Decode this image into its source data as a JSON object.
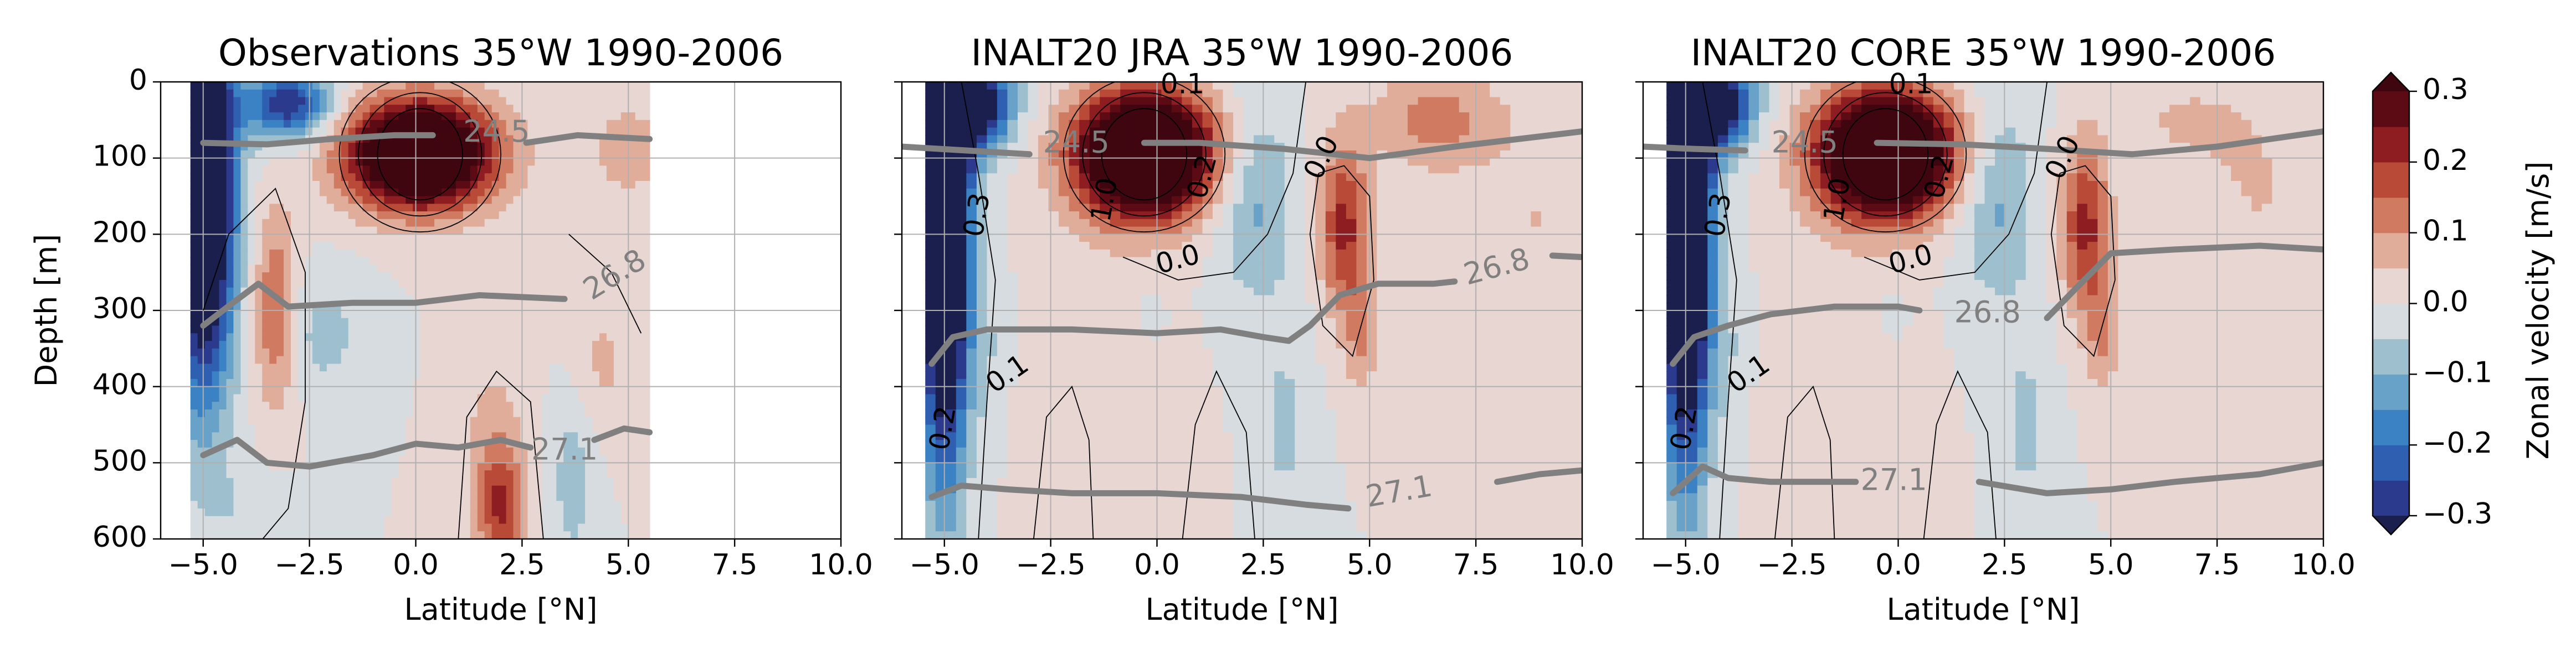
{
  "figure": {
    "background": "#ffffff"
  },
  "panels": [
    {
      "title": "Observations 35°W 1990-2006",
      "xlabel": "Latitude [°N]",
      "ylabel": "Depth [m]",
      "show_y_tick_labels": true,
      "data_xmax": 5.5,
      "density_labels": [
        {
          "text": "24.5",
          "lat": 1.9,
          "depth": 68,
          "rot": 0
        },
        {
          "text": "26.8",
          "lat": 4.7,
          "depth": 255,
          "rot": -32
        },
        {
          "text": "27.1",
          "lat": 3.5,
          "depth": 485,
          "rot": 0
        }
      ],
      "contour_labels": []
    },
    {
      "title": "INALT20 JRA 35°W 1990-2006",
      "xlabel": "Latitude [°N]",
      "ylabel": "",
      "show_y_tick_labels": false,
      "data_xmax": 10,
      "density_labels": [
        {
          "text": "24.5",
          "lat": -1.9,
          "depth": 82,
          "rot": 0
        },
        {
          "text": "26.8",
          "lat": 8.0,
          "depth": 245,
          "rot": -15
        },
        {
          "text": "27.1",
          "lat": 5.7,
          "depth": 540,
          "rot": -10
        }
      ],
      "contour_labels": [
        {
          "text": "0.1",
          "lat": 0.6,
          "depth": 5,
          "rot": 0
        },
        {
          "text": "0.3",
          "lat": -4.2,
          "depth": 175,
          "rot": -80
        },
        {
          "text": "1.0",
          "lat": -1.2,
          "depth": 155,
          "rot": -80
        },
        {
          "text": "0.2",
          "lat": 1.1,
          "depth": 125,
          "rot": -75
        },
        {
          "text": "0.0",
          "lat": 3.9,
          "depth": 100,
          "rot": -65
        },
        {
          "text": "0.0",
          "lat": 0.5,
          "depth": 235,
          "rot": -15
        },
        {
          "text": "0.1",
          "lat": -3.5,
          "depth": 385,
          "rot": -35
        },
        {
          "text": "0.2",
          "lat": -5.0,
          "depth": 455,
          "rot": -80
        }
      ]
    },
    {
      "title": "INALT20 CORE 35°W 1990-2006",
      "xlabel": "Latitude [°N]",
      "ylabel": "",
      "show_y_tick_labels": false,
      "data_xmax": 10,
      "density_labels": [
        {
          "text": "24.5",
          "lat": -2.2,
          "depth": 82,
          "rot": 0
        },
        {
          "text": "26.8",
          "lat": 2.1,
          "depth": 305,
          "rot": 0
        },
        {
          "text": "27.1",
          "lat": -0.1,
          "depth": 525,
          "rot": 0
        }
      ],
      "contour_labels": [
        {
          "text": "0.1",
          "lat": 0.3,
          "depth": 5,
          "rot": 0
        },
        {
          "text": "0.3",
          "lat": -4.2,
          "depth": 175,
          "rot": -80
        },
        {
          "text": "1.0",
          "lat": -1.4,
          "depth": 155,
          "rot": -80
        },
        {
          "text": "0.2",
          "lat": 1.0,
          "depth": 125,
          "rot": -75
        },
        {
          "text": "0.0",
          "lat": 3.9,
          "depth": 100,
          "rot": -65
        },
        {
          "text": "0.0",
          "lat": 0.3,
          "depth": 235,
          "rot": -15
        },
        {
          "text": "0.1",
          "lat": -3.5,
          "depth": 385,
          "rot": -35
        },
        {
          "text": "0.2",
          "lat": -5.0,
          "depth": 455,
          "rot": -80
        }
      ]
    }
  ],
  "chart_data": {
    "type": "heatmap",
    "description_type": "filled contour sections (latitude–depth)",
    "x_range": [
      -6,
      10
    ],
    "y_range": [
      0,
      600
    ],
    "y_inverted": true,
    "x_ticks": [
      -5.0,
      -2.5,
      0.0,
      2.5,
      5.0,
      7.5,
      10.0
    ],
    "x_tick_labels": [
      "−5.0",
      "−2.5",
      "0.0",
      "2.5",
      "5.0",
      "7.5",
      "10.0"
    ],
    "y_ticks": [
      0,
      100,
      200,
      300,
      400,
      500,
      600
    ],
    "y_tick_labels": [
      "0",
      "100",
      "200",
      "300",
      "400",
      "500",
      "600"
    ],
    "grid": true,
    "colorbar": {
      "label": "Zonal velocity [m/s]",
      "min": -0.3,
      "max": 0.3,
      "extend": "both",
      "levels": [
        -0.3,
        -0.25,
        -0.2,
        -0.15,
        -0.1,
        -0.05,
        0,
        0.05,
        0.1,
        0.15,
        0.2,
        0.25,
        0.3
      ],
      "colors": [
        "#2b3a8c",
        "#2e5fb0",
        "#3b82c4",
        "#69a2c8",
        "#9dbfce",
        "#d6dcdf",
        "#e8d6d2",
        "#e0ad9a",
        "#cf7a61",
        "#b84a37",
        "#8e1d22",
        "#5c0a14"
      ],
      "under_color": "#1a1f4d",
      "over_color": "#3f0610",
      "tick_values": [
        0.3,
        0.2,
        0.1,
        0.0,
        -0.1,
        -0.2,
        -0.3
      ],
      "tick_labels": [
        "0.3",
        "0.2",
        "0.1",
        "0.0",
        "−0.1",
        "−0.2",
        "−0.3"
      ]
    },
    "density_contours": {
      "color": "#808080",
      "levels": [
        "24.5",
        "26.8",
        "27.1"
      ]
    }
  }
}
